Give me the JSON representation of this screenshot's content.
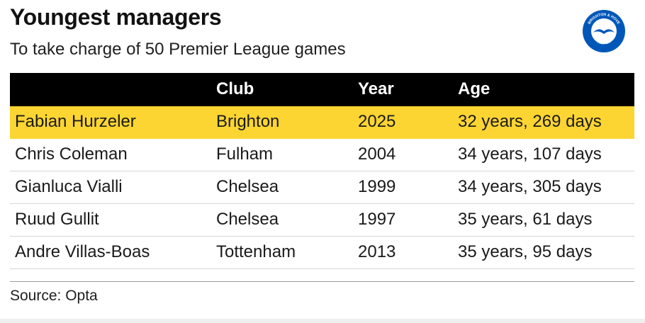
{
  "title": "Youngest managers",
  "subtitle": "To take charge of 50 Premier League games",
  "logo": {
    "icon": "brighton-seagull-crest",
    "text_top": "BRIGHTON & HOVE",
    "text_bottom": "ALBION",
    "color": "#0057b8"
  },
  "chart_data": {
    "type": "table",
    "title": "Youngest managers",
    "subtitle": "To take charge of 50 Premier League games",
    "columns": [
      "",
      "Club",
      "Year",
      "Age"
    ],
    "rows": [
      [
        "Fabian Hurzeler",
        "Brighton",
        "2025",
        "32 years, 269 days"
      ],
      [
        "Chris Coleman",
        "Fulham",
        "2004",
        "34 years, 107 days"
      ],
      [
        "Gianluca Vialli",
        "Chelsea",
        "1999",
        "34 years, 305 days"
      ],
      [
        "Ruud Gullit",
        "Chelsea",
        "1997",
        "35 years, 61 days"
      ],
      [
        "Andre Villas-Boas",
        "Tottenham",
        "2013",
        "35 years, 95 days"
      ]
    ],
    "highlight_row": 0,
    "colors": {
      "header_bg": "#000000",
      "header_text": "#ffffff",
      "highlight": "#fdd532"
    }
  },
  "source": "Source: Opta"
}
